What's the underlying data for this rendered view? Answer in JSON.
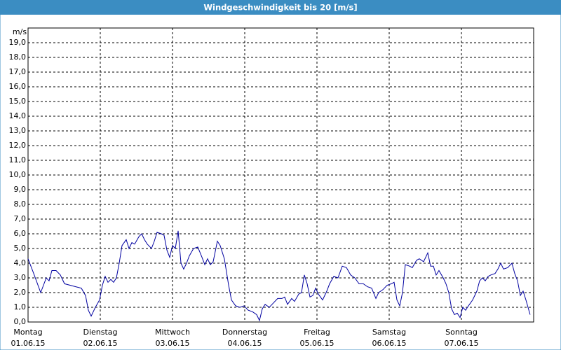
{
  "chart_data": {
    "type": "line",
    "title": "Windgeschwindigkeit bis 20 [m/s]",
    "y_label": "m/s",
    "xlim": [
      0,
      7
    ],
    "xticks": [
      {
        "value": 0,
        "label": "Montag"
      },
      {
        "value": 1,
        "label": "Dienstag"
      },
      {
        "value": 2,
        "label": "Mittwoch"
      },
      {
        "value": 3,
        "label": "Donnerstag"
      },
      {
        "value": 4,
        "label": "Freitag"
      },
      {
        "value": 5,
        "label": "Samstag"
      },
      {
        "value": 6,
        "label": "Sonntag"
      }
    ],
    "xtick_dates": [
      "01.06.15",
      "02.06.15",
      "03.06.15",
      "04.06.15",
      "05.06.15",
      "06.06.15",
      "07.06.15"
    ],
    "ylim": [
      0,
      20
    ],
    "yticks": [
      {
        "value": 0,
        "label": "0,0"
      },
      {
        "value": 1,
        "label": "1,0"
      },
      {
        "value": 2,
        "label": "2,0"
      },
      {
        "value": 3,
        "label": "3,0"
      },
      {
        "value": 4,
        "label": "4,0"
      },
      {
        "value": 5,
        "label": "5,0"
      },
      {
        "value": 6,
        "label": "6,0"
      },
      {
        "value": 7,
        "label": "7,0"
      },
      {
        "value": 8,
        "label": "8,0"
      },
      {
        "value": 9,
        "label": "9,0"
      },
      {
        "value": 10,
        "label": "10,0"
      },
      {
        "value": 11,
        "label": "11,0"
      },
      {
        "value": 12,
        "label": "12,0"
      },
      {
        "value": 13,
        "label": "13,0"
      },
      {
        "value": 14,
        "label": "14,0"
      },
      {
        "value": 15,
        "label": "15,0"
      },
      {
        "value": 16,
        "label": "16,0"
      },
      {
        "value": 17,
        "label": "17,0"
      },
      {
        "value": 18,
        "label": "18,0"
      },
      {
        "value": 19,
        "label": "19,0"
      }
    ],
    "grid": true,
    "series": [
      {
        "color": "#0000a0",
        "x": [
          0,
          0.078,
          0.175,
          0.252,
          0.291,
          0.33,
          0.388,
          0.447,
          0.505,
          0.583,
          0.66,
          0.738,
          0.796,
          0.835,
          0.874,
          0.932,
          0.99,
          1.029,
          1.068,
          1.107,
          1.146,
          1.184,
          1.223,
          1.262,
          1.301,
          1.359,
          1.398,
          1.437,
          1.476,
          1.534,
          1.573,
          1.612,
          1.65,
          1.709,
          1.748,
          1.786,
          1.845,
          1.883,
          1.922,
          1.961,
          2.0,
          2.039,
          2.078,
          2.117,
          2.155,
          2.194,
          2.233,
          2.291,
          2.35,
          2.408,
          2.447,
          2.485,
          2.524,
          2.563,
          2.621,
          2.66,
          2.718,
          2.777,
          2.816,
          2.874,
          2.932,
          2.99,
          3.049,
          3.107,
          3.165,
          3.204,
          3.243,
          3.282,
          3.34,
          3.398,
          3.456,
          3.515,
          3.553,
          3.592,
          3.65,
          3.689,
          3.748,
          3.786,
          3.825,
          3.864,
          3.903,
          3.942,
          3.981,
          4.019,
          4.078,
          4.136,
          4.175,
          4.233,
          4.291,
          4.35,
          4.408,
          4.466,
          4.524,
          4.583,
          4.641,
          4.699,
          4.757,
          4.816,
          4.854,
          4.913,
          4.971,
          5.029,
          5.068,
          5.107,
          5.146,
          5.184,
          5.223,
          5.282,
          5.32,
          5.379,
          5.417,
          5.476,
          5.534,
          5.573,
          5.612,
          5.65,
          5.689,
          5.748,
          5.786,
          5.825,
          5.864,
          5.903,
          5.942,
          5.981,
          6.019,
          6.058,
          6.097,
          6.155,
          6.214,
          6.252,
          6.291,
          6.33,
          6.369,
          6.408,
          6.466,
          6.505,
          6.544,
          6.583,
          6.641,
          6.699,
          6.738,
          6.777,
          6.816,
          6.854,
          6.893,
          6.951
        ],
        "values": [
          4.3,
          3.3,
          2.0,
          3.0,
          2.8,
          3.5,
          3.5,
          3.2,
          2.6,
          2.5,
          2.4,
          2.3,
          1.8,
          0.8,
          0.4,
          1.0,
          1.5,
          2.5,
          3.1,
          2.7,
          2.9,
          2.7,
          3.0,
          4.0,
          5.2,
          5.6,
          5.0,
          5.4,
          5.3,
          5.8,
          6.0,
          5.6,
          5.3,
          5.0,
          5.5,
          6.1,
          6.0,
          5.9,
          4.9,
          4.4,
          5.2,
          5.0,
          6.2,
          4.0,
          3.6,
          4.0,
          4.5,
          5.0,
          5.1,
          4.4,
          3.9,
          4.3,
          3.9,
          4.1,
          5.5,
          5.2,
          4.3,
          2.5,
          1.5,
          1.1,
          1.0,
          1.1,
          0.8,
          0.7,
          0.5,
          0.1,
          0.9,
          1.2,
          1.0,
          1.3,
          1.6,
          1.6,
          1.7,
          1.2,
          1.6,
          1.4,
          1.9,
          2.0,
          3.2,
          2.6,
          1.7,
          1.8,
          2.3,
          1.9,
          1.5,
          2.1,
          2.6,
          3.1,
          3.0,
          3.8,
          3.7,
          3.2,
          3.0,
          2.6,
          2.6,
          2.4,
          2.3,
          1.6,
          2.0,
          2.2,
          2.5,
          2.6,
          2.7,
          1.5,
          1.1,
          2.0,
          3.9,
          3.8,
          3.7,
          4.2,
          4.3,
          4.1,
          4.7,
          3.8,
          3.8,
          3.2,
          3.5,
          3.0,
          2.6,
          2.0,
          0.9,
          0.5,
          0.6,
          0.3,
          1.0,
          0.8,
          1.1,
          1.5,
          2.1,
          2.8,
          3.0,
          2.8,
          3.1,
          3.2,
          3.3,
          3.6,
          4.0,
          3.6,
          3.7,
          4.0,
          3.3,
          2.8,
          1.8,
          2.1,
          1.5,
          0.5
        ]
      }
    ]
  }
}
